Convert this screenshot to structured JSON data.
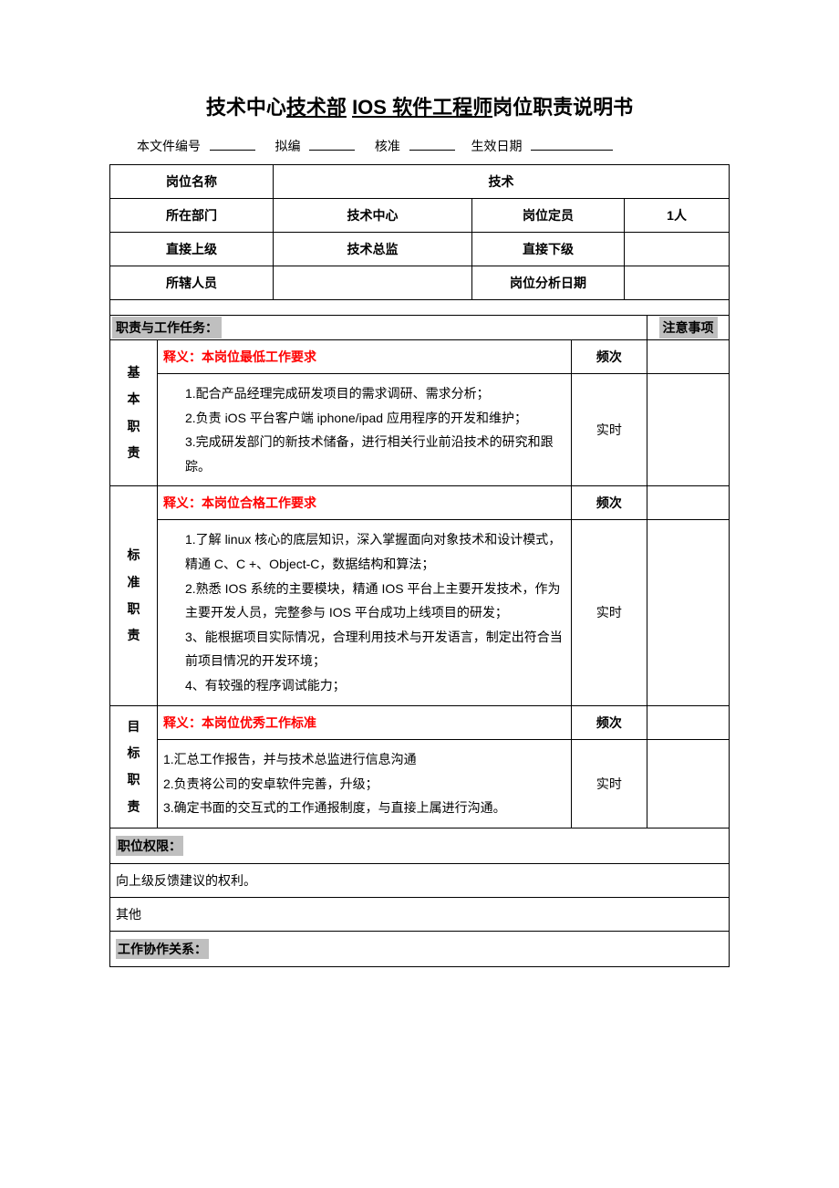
{
  "title": {
    "pre": "技术中心",
    "u1": "技术部",
    "mid": " ",
    "u2": "IOS 软件工程师",
    "post": "岗位职责说明书"
  },
  "meta": {
    "docnum_label": "本文件编号",
    "drafted_label": "拟编",
    "approved_label": "核准",
    "effective_label": "生效日期"
  },
  "header": {
    "post_name_label": "岗位名称",
    "post_name_value": "技术",
    "dept_label": "所在部门",
    "dept_value": "技术中心",
    "quota_label": "岗位定员",
    "quota_value": "1人",
    "superior_label": "直接上级",
    "superior_value": "技术总监",
    "subordinate_label": "直接下级",
    "subordinate_value": "",
    "staff_label": "所辖人员",
    "staff_value": "",
    "analysis_date_label": "岗位分析日期",
    "analysis_date_value": ""
  },
  "sections": {
    "duties_label": "职责与工作任务：",
    "notes_label": "注意事项",
    "basic": {
      "vlabel": "基本职责",
      "def_label": "释义：本岗位最低工作要求",
      "freq_label": "频次",
      "freq_value": "实时",
      "body": "1.配合产品经理完成研发项目的需求调研、需求分析；\n2.负责 iOS 平台客户端 iphone/ipad 应用程序的开发和维护；\n3.完成研发部门的新技术储备，进行相关行业前沿技术的研究和跟踪。"
    },
    "standard": {
      "vlabel": "标准职责",
      "def_label": "释义：本岗位合格工作要求",
      "freq_label": "频次",
      "freq_value": "实时",
      "body": "1.了解 linux 核心的底层知识，深入掌握面向对象技术和设计模式，精通 C、C +、Object-C，数据结构和算法；\n2.熟悉 IOS 系统的主要模块，精通 IOS 平台上主要开发技术，作为主要开发人员，完整参与 IOS 平台成功上线项目的研发；\n3、能根据项目实际情况，合理利用技术与开发语言，制定出符合当前项目情况的开发环境；\n4、有较强的程序调试能力；"
    },
    "target": {
      "vlabel": "目标职责",
      "def_label": "释义：本岗位优秀工作标准",
      "freq_label": "频次",
      "freq_value": "实时",
      "body": "1.汇总工作报告，并与技术总监进行信息沟通\n2.负责将公司的安卓软件完善，升级；\n3.确定书面的交互式的工作通报制度，与直接上属进行沟通。"
    },
    "authority": {
      "label": "职位权限：",
      "body": "向上级反馈建议的权利。",
      "other": "其他"
    },
    "collab": {
      "label": "工作协作关系："
    }
  },
  "colors": {
    "band_bg": "#bfbfbf",
    "red": "#ff0000",
    "border": "#000000",
    "page_bg": "#ffffff"
  }
}
